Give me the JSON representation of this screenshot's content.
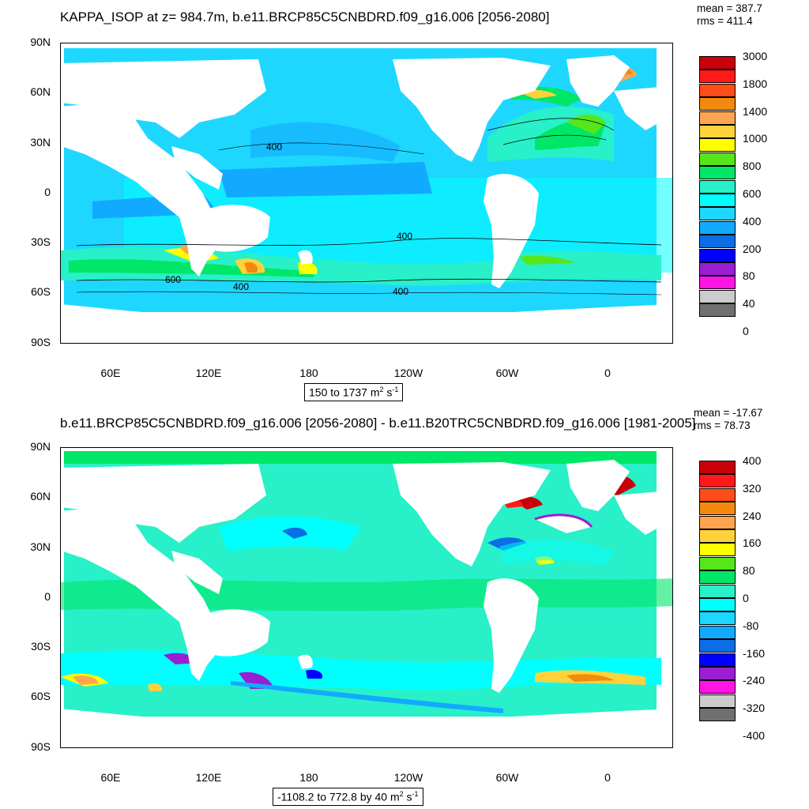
{
  "top": {
    "title": "KAPPA_ISOP at z= 984.7m, b.e11.BRCP85C5CNBDRD.f09_g16.006 [2056-2080]",
    "mean": "mean = 387.7",
    "rms": "rms = 411.4",
    "range_text": "150 to 1737 m",
    "range_sup": "2",
    "range_unit2": " s",
    "range_sup2": "-1",
    "contour_labels": [
      "400",
      "400",
      "600",
      "400",
      "400"
    ],
    "legend": {
      "labels": [
        "3000",
        "1800",
        "1400",
        "1000",
        "800",
        "600",
        "400",
        "200",
        "80",
        "40",
        "0"
      ],
      "colors": [
        "#c8000a",
        "#ff1a1a",
        "#ff4d1a",
        "#f28a10",
        "#ffa550",
        "#ffd23c",
        "#ffff00",
        "#56e61a",
        "#00e667",
        "#28f0c8",
        "#00ffff",
        "#1ed7ff",
        "#12aaff",
        "#0a6ee6",
        "#0000ff",
        "#9a1ed2",
        "#ff14e6",
        "#cccccc",
        "#707070"
      ]
    }
  },
  "bottom": {
    "title": "b.e11.BRCP85C5CNBDRD.f09_g16.006 [2056-2080] - b.e11.B20TRC5CNBDRD.f09_g16.006 [1981-2005]",
    "mean": "mean = -17.67",
    "rms": "rms = 78.73",
    "range_text": "-1108.2 to 772.8 by 40 m",
    "range_sup": "2",
    "range_unit2": " s",
    "range_sup2": "-1",
    "legend": {
      "labels": [
        "400",
        "320",
        "240",
        "160",
        "80",
        "0",
        "-80",
        "-160",
        "-240",
        "-320",
        "-400"
      ],
      "colors": [
        "#c8000a",
        "#ff1a1a",
        "#ff4d1a",
        "#f28a10",
        "#ffa550",
        "#ffd23c",
        "#ffff00",
        "#56e61a",
        "#00e667",
        "#28f0c8",
        "#00ffff",
        "#1ed7ff",
        "#12aaff",
        "#0a6ee6",
        "#0000ff",
        "#9a1ed2",
        "#ff14e6",
        "#cccccc",
        "#707070"
      ]
    }
  },
  "axes": {
    "lat_labels": [
      "90N",
      "60N",
      "30N",
      "0",
      "30S",
      "60S",
      "90S"
    ],
    "lon_labels": [
      "60E",
      "120E",
      "180",
      "120W",
      "60W",
      "0"
    ]
  }
}
